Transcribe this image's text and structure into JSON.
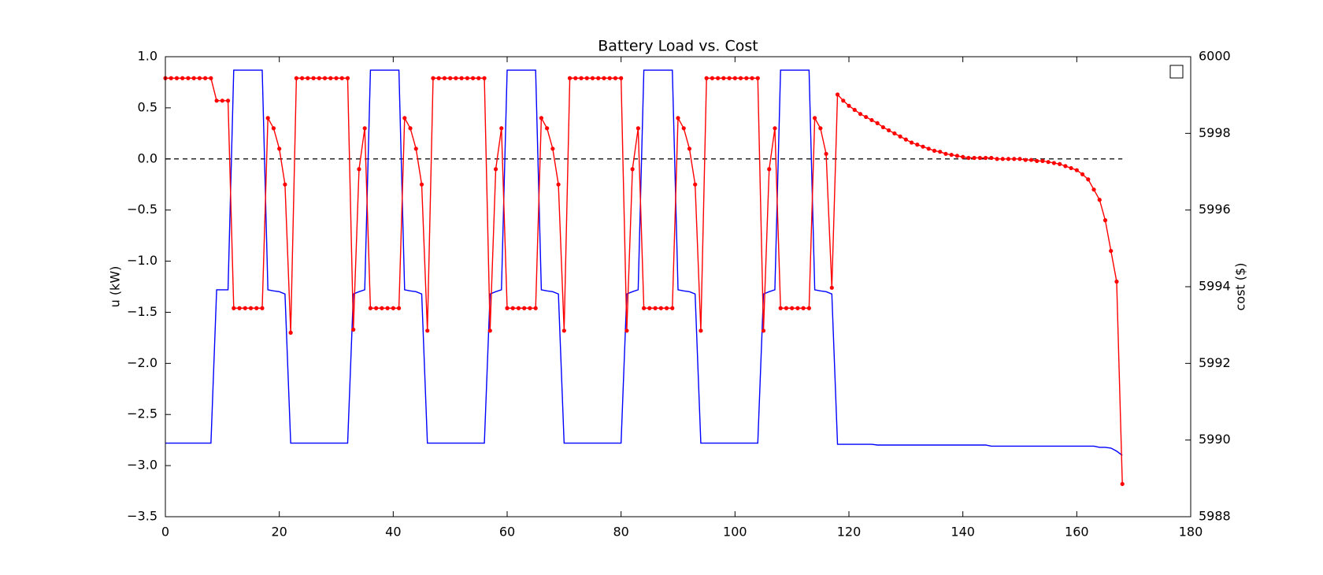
{
  "chart_data": {
    "type": "line",
    "title": "Battery Load vs. Cost",
    "y_label": "u (kW)",
    "y2_label": "cost ($)",
    "xlim": [
      0,
      180
    ],
    "xticks": [
      0,
      20,
      40,
      60,
      80,
      100,
      120,
      140,
      160,
      180
    ],
    "ylim": [
      -3.5,
      1
    ],
    "yticks": [
      {
        "value": -3.5,
        "label": "−3.5"
      },
      {
        "value": -3,
        "label": "−3.0"
      },
      {
        "value": -2.5,
        "label": "−2.5"
      },
      {
        "value": -2,
        "label": "−2.0"
      },
      {
        "value": -1.5,
        "label": "−1.5"
      },
      {
        "value": -1,
        "label": "−1.0"
      },
      {
        "value": -0.5,
        "label": "−0.5"
      },
      {
        "value": 0,
        "label": "0.0"
      },
      0.5,
      {
        "value": 1,
        "label": "1.0"
      }
    ],
    "y2lim": [
      5988,
      6000
    ],
    "y2ticks": [
      5988,
      5990,
      5992,
      5994,
      5996,
      5998,
      6000
    ],
    "hline": 0,
    "x": [
      0,
      1,
      2,
      3,
      4,
      5,
      6,
      7,
      8,
      9,
      10,
      11,
      12,
      13,
      14,
      15,
      16,
      17,
      18,
      19,
      20,
      21,
      22,
      23,
      24,
      25,
      26,
      27,
      28,
      29,
      30,
      31,
      32,
      33,
      34,
      35,
      36,
      37,
      38,
      39,
      40,
      41,
      42,
      43,
      44,
      45,
      46,
      47,
      48,
      49,
      50,
      51,
      52,
      53,
      54,
      55,
      56,
      57,
      58,
      59,
      60,
      61,
      62,
      63,
      64,
      65,
      66,
      67,
      68,
      69,
      70,
      71,
      72,
      73,
      74,
      75,
      76,
      77,
      78,
      79,
      80,
      81,
      82,
      83,
      84,
      85,
      86,
      87,
      88,
      89,
      90,
      91,
      92,
      93,
      94,
      95,
      96,
      97,
      98,
      99,
      100,
      101,
      102,
      103,
      104,
      105,
      106,
      107,
      108,
      109,
      110,
      111,
      112,
      113,
      114,
      115,
      116,
      117,
      118,
      119,
      120,
      121,
      122,
      123,
      124,
      125,
      126,
      127,
      128,
      129,
      130,
      131,
      132,
      133,
      134,
      135,
      136,
      137,
      138,
      139,
      140,
      141,
      142,
      143,
      144,
      145,
      146,
      147,
      148,
      149,
      150,
      151,
      152,
      153,
      154,
      155,
      156,
      157,
      158,
      159,
      160,
      161,
      162,
      163,
      164,
      165,
      166,
      167,
      168
    ],
    "series": [
      {
        "color": "#ff0000",
        "markers": true,
        "values": [
          0.79,
          0.79,
          0.79,
          0.79,
          0.79,
          0.79,
          0.79,
          0.79,
          0.79,
          0.57,
          0.57,
          0.57,
          -1.46,
          -1.46,
          -1.46,
          -1.46,
          -1.46,
          -1.46,
          0.4,
          0.3,
          0.1,
          -0.25,
          -1.7,
          0.79,
          0.79,
          0.79,
          0.79,
          0.79,
          0.79,
          0.79,
          0.79,
          0.79,
          0.79,
          -1.67,
          -0.1,
          0.3,
          -1.46,
          -1.46,
          -1.46,
          -1.46,
          -1.46,
          -1.46,
          0.4,
          0.3,
          0.1,
          -0.25,
          -1.68,
          0.79,
          0.79,
          0.79,
          0.79,
          0.79,
          0.79,
          0.79,
          0.79,
          0.79,
          0.79,
          -1.68,
          -0.1,
          0.3,
          -1.46,
          -1.46,
          -1.46,
          -1.46,
          -1.46,
          -1.46,
          0.4,
          0.3,
          0.1,
          -0.25,
          -1.68,
          0.79,
          0.79,
          0.79,
          0.79,
          0.79,
          0.79,
          0.79,
          0.79,
          0.79,
          0.79,
          -1.68,
          -0.1,
          0.3,
          -1.46,
          -1.46,
          -1.46,
          -1.46,
          -1.46,
          -1.46,
          0.4,
          0.3,
          0.1,
          -0.25,
          -1.68,
          0.79,
          0.79,
          0.79,
          0.79,
          0.79,
          0.79,
          0.79,
          0.79,
          0.79,
          0.79,
          -1.68,
          -0.1,
          0.3,
          -1.46,
          -1.46,
          -1.46,
          -1.46,
          -1.46,
          -1.46,
          0.4,
          0.3,
          0.05,
          -1.26,
          0.63,
          0.57,
          0.52,
          0.48,
          0.44,
          0.41,
          0.38,
          0.35,
          0.31,
          0.28,
          0.25,
          0.22,
          0.19,
          0.16,
          0.14,
          0.12,
          0.1,
          0.08,
          0.07,
          0.05,
          0.04,
          0.03,
          0.02,
          0.01,
          0.01,
          0.01,
          0.01,
          0.01,
          0,
          0,
          0,
          0,
          0,
          -0.01,
          -0.01,
          -0.02,
          -0.02,
          -0.03,
          -0.04,
          -0.05,
          -0.07,
          -0.09,
          -0.11,
          -0.15,
          -0.2,
          -0.3,
          -0.4,
          -0.6,
          -0.9,
          -1.2,
          -3.18
        ]
      },
      {
        "color": "#0000ff",
        "axis": "y2",
        "markers": false,
        "values": [
          5989.92,
          5989.92,
          5989.92,
          5989.92,
          5989.92,
          5989.92,
          5989.92,
          5989.92,
          5989.92,
          5993.92,
          5993.92,
          5993.92,
          5999.65,
          5999.65,
          5999.65,
          5999.65,
          5999.65,
          5999.65,
          5993.92,
          5993.89,
          5993.87,
          5993.81,
          5989.92,
          5989.92,
          5989.92,
          5989.92,
          5989.92,
          5989.92,
          5989.92,
          5989.92,
          5989.92,
          5989.92,
          5989.92,
          5993.81,
          5993.87,
          5993.92,
          5999.65,
          5999.65,
          5999.65,
          5999.65,
          5999.65,
          5999.65,
          5993.92,
          5993.89,
          5993.87,
          5993.81,
          5989.92,
          5989.92,
          5989.92,
          5989.92,
          5989.92,
          5989.92,
          5989.92,
          5989.92,
          5989.92,
          5989.92,
          5989.92,
          5993.81,
          5993.87,
          5993.92,
          5999.65,
          5999.65,
          5999.65,
          5999.65,
          5999.65,
          5999.65,
          5993.92,
          5993.89,
          5993.87,
          5993.81,
          5989.92,
          5989.92,
          5989.92,
          5989.92,
          5989.92,
          5989.92,
          5989.92,
          5989.92,
          5989.92,
          5989.92,
          5989.92,
          5993.81,
          5993.87,
          5993.92,
          5999.65,
          5999.65,
          5999.65,
          5999.65,
          5999.65,
          5999.65,
          5993.92,
          5993.89,
          5993.87,
          5993.81,
          5989.92,
          5989.92,
          5989.92,
          5989.92,
          5989.92,
          5989.92,
          5989.92,
          5989.92,
          5989.92,
          5989.92,
          5989.92,
          5993.81,
          5993.87,
          5993.92,
          5999.65,
          5999.65,
          5999.65,
          5999.65,
          5999.65,
          5999.65,
          5993.92,
          5993.89,
          5993.87,
          5993.81,
          5989.89,
          5989.89,
          5989.89,
          5989.89,
          5989.89,
          5989.89,
          5989.89,
          5989.87,
          5989.87,
          5989.87,
          5989.87,
          5989.87,
          5989.87,
          5989.87,
          5989.87,
          5989.87,
          5989.87,
          5989.87,
          5989.87,
          5989.87,
          5989.87,
          5989.87,
          5989.87,
          5989.87,
          5989.87,
          5989.87,
          5989.87,
          5989.84,
          5989.84,
          5989.84,
          5989.84,
          5989.84,
          5989.84,
          5989.84,
          5989.84,
          5989.84,
          5989.84,
          5989.84,
          5989.84,
          5989.84,
          5989.84,
          5989.84,
          5989.84,
          5989.84,
          5989.84,
          5989.84,
          5989.81,
          5989.81,
          5989.79,
          5989.71,
          5989.6
        ]
      }
    ]
  }
}
